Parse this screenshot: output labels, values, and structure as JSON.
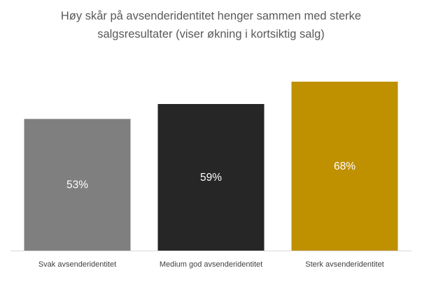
{
  "chart_data": {
    "type": "bar",
    "title_lines": [
      "Høy skår på avsenderidentitet henger sammen med sterke",
      "salgsresultater (viser økning i kortsiktig salg)"
    ],
    "categories": [
      "Svak avsenderidentitet",
      "Medium god avsenderidentitet",
      "Sterk avsenderidentitet"
    ],
    "values": [
      53,
      59,
      68
    ],
    "data_labels": [
      "53%",
      "59%",
      "68%"
    ],
    "colors": [
      "#7f7f7f",
      "#262626",
      "#bf9000"
    ],
    "ylim": [
      0,
      68
    ],
    "grid": false,
    "legend": "none"
  }
}
